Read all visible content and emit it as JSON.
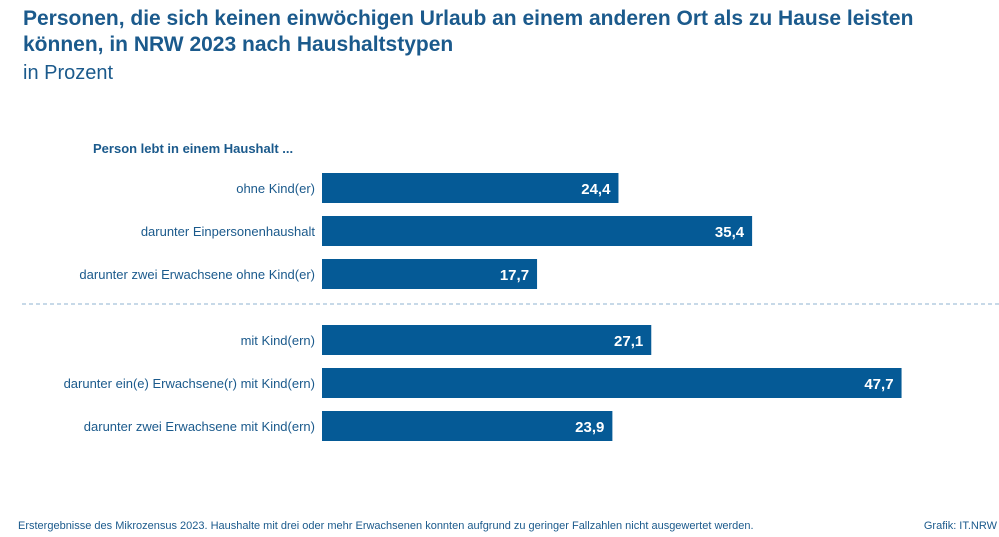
{
  "header": {
    "title": "Personen, die sich keinen einwöchigen Urlaub an einem anderen Ort als zu Hause leisten können, in NRW 2023 nach Haushaltstypen",
    "subtitle": "in Prozent"
  },
  "chart_data": {
    "type": "bar",
    "orientation": "horizontal",
    "group_label": "Person lebt in einem Haushalt ...",
    "categories": [
      "ohne Kind(er)",
      "darunter Einpersonenhaushalt",
      "darunter zwei Erwachsene ohne Kind(er)",
      "mit Kind(ern)",
      "darunter ein(e) Erwachsene(r) mit Kind(ern)",
      "darunter zwei Erwachsene mit Kind(ern)"
    ],
    "values": [
      24.4,
      35.4,
      17.7,
      27.1,
      47.7,
      23.9
    ],
    "value_labels": [
      "24,4",
      "35,4",
      "17,7",
      "27,1",
      "47,7",
      "23,9"
    ],
    "groups": [
      [
        0,
        1,
        2
      ],
      [
        3,
        4,
        5
      ]
    ],
    "xlim": [
      0,
      50
    ],
    "grid": false,
    "bar_color": "#055a96",
    "text_color": "#1b5a8c"
  },
  "footer": {
    "note": "Erstergebnisse des Mikrozensus 2023. Haushalte mit drei oder mehr Erwachsenen konnten aufgrund zu geringer Fallzahlen nicht ausgewertet werden.",
    "source": "Grafik: IT.NRW"
  }
}
